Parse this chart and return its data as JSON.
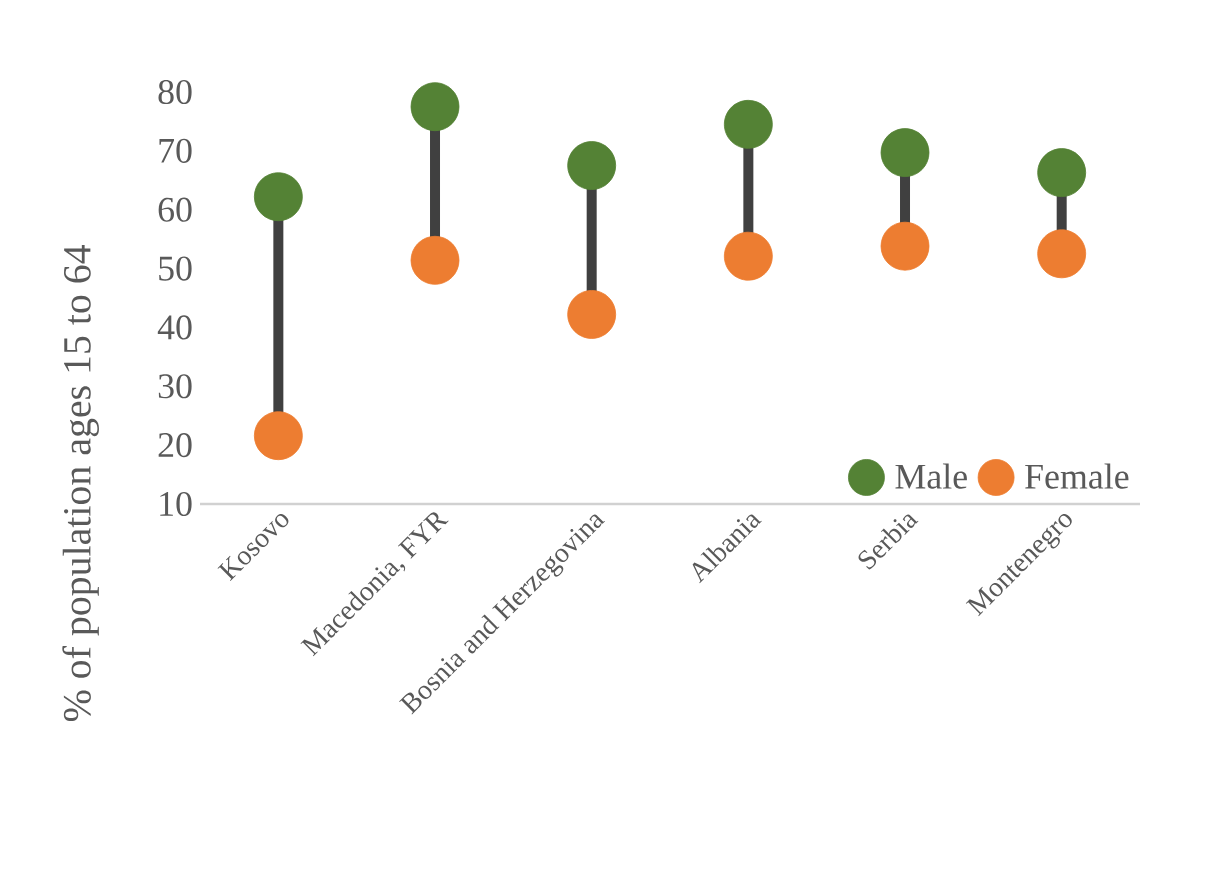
{
  "chart_data": {
    "type": "scatter",
    "ylabel": "% of population ages 15 to 64",
    "categories": [
      "Kosovo",
      "Macedonia, FYR",
      "Bosnia and Herzegovina",
      "Albania",
      "Serbia",
      "Montenegro"
    ],
    "series": [
      {
        "name": "Male",
        "color": "#548235",
        "values": [
          62.2,
          77.5,
          67.5,
          74.5,
          69.7,
          66.3
        ]
      },
      {
        "name": "Female",
        "color": "#ed7d31",
        "values": [
          21.6,
          51.4,
          42.2,
          52.1,
          53.8,
          52.5
        ]
      }
    ],
    "ylim": [
      10,
      80
    ],
    "yticks": [
      10,
      20,
      30,
      40,
      50,
      60,
      70,
      80
    ],
    "marker": "circle",
    "legend": "bottom right",
    "grid": false
  }
}
